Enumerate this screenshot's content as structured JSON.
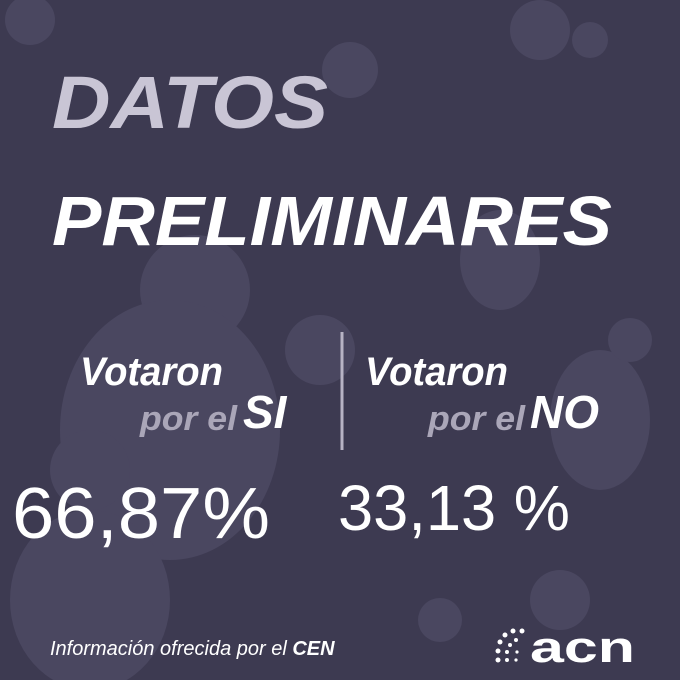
{
  "header": {
    "title_line1": "DATOS",
    "title_line2": "PRELIMINARES"
  },
  "results": [
    {
      "line1": "Votaron",
      "line2": "por el",
      "option": "SI",
      "percent": "66,87%"
    },
    {
      "line1": "Votaron",
      "line2": "por el",
      "option": "NO",
      "percent": "33,13 %"
    }
  ],
  "footer": {
    "source": "Información ofrecida por el",
    "source_org": "CEN",
    "logo": "acn"
  }
}
